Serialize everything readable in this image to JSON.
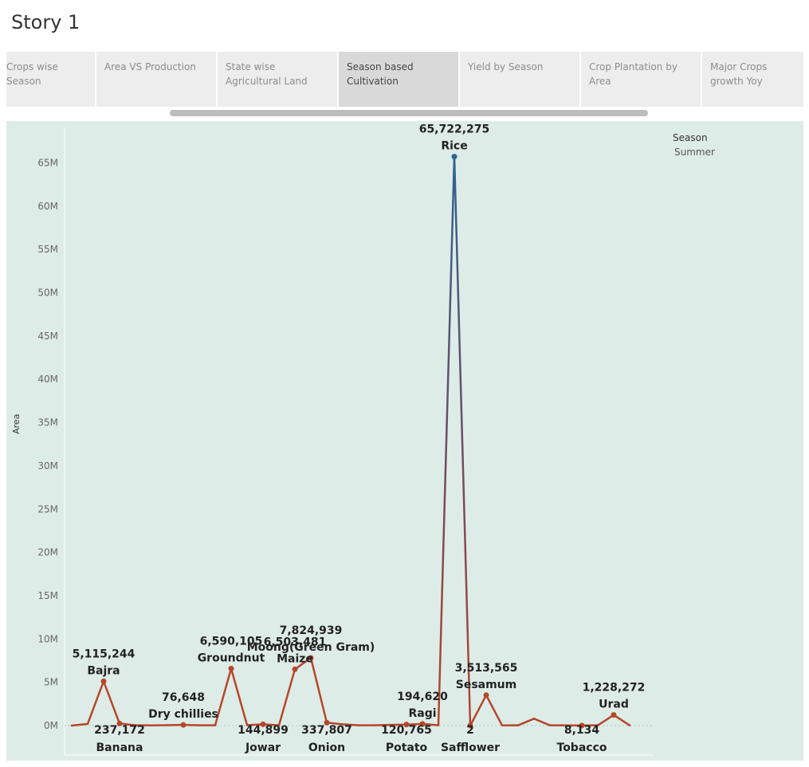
{
  "story": {
    "title": "Story 1"
  },
  "tabs": [
    {
      "label": "Crops wise Season",
      "active": false
    },
    {
      "label": "Area VS Production",
      "active": false
    },
    {
      "label": "State wise Agricultural Land",
      "active": false
    },
    {
      "label": "Season based Cultivation",
      "active": true
    },
    {
      "label": "Yield by Season",
      "active": false
    },
    {
      "label": "Crop Plantation by Area",
      "active": false
    },
    {
      "label": "Major Crops growth Yoy",
      "active": false
    }
  ],
  "legend": {
    "title": "Season",
    "item": "Summer"
  },
  "colors": {
    "line_low": "#b5472a",
    "line_high": "#2e6391",
    "plot_bg": "#deece8"
  },
  "chart_data": {
    "type": "line",
    "ylabel": "Area",
    "ylim": [
      0,
      70000000
    ],
    "y_ticks": [
      "0M",
      "5M",
      "10M",
      "15M",
      "20M",
      "25M",
      "30M",
      "35M",
      "40M",
      "45M",
      "50M",
      "55M",
      "60M",
      "65M"
    ],
    "values": [
      0,
      200000,
      5115244,
      237172,
      30000,
      20000,
      50000,
      76648,
      30000,
      40000,
      6590105,
      50000,
      144899,
      30000,
      6503481,
      7824939,
      337807,
      150000,
      30000,
      30000,
      80000,
      120765,
      194620,
      30000,
      65722275,
      2,
      3513565,
      20000,
      30000,
      800000,
      30000,
      20000,
      8134,
      30000,
      1228272,
      30000
    ],
    "annotations": [
      {
        "index": 2,
        "value": "5,115,244",
        "label": "Bajra",
        "pos": "above"
      },
      {
        "index": 3,
        "value": "237,172",
        "label": "Banana",
        "pos": "below"
      },
      {
        "index": 7,
        "value": "76,648",
        "label": "Dry chillies",
        "pos": "above"
      },
      {
        "index": 10,
        "value": "6,590,105",
        "label": "Groundnut",
        "pos": "above"
      },
      {
        "index": 12,
        "value": "144,899",
        "label": "Jowar",
        "pos": "below"
      },
      {
        "index": 14,
        "value": "6,503,481",
        "label": "Maize",
        "pos": "above"
      },
      {
        "index": 15,
        "value": "7,824,939",
        "label": "Moong(Green Gram)",
        "pos": "above"
      },
      {
        "index": 16,
        "value": "337,807",
        "label": "Onion",
        "pos": "below"
      },
      {
        "index": 21,
        "value": "120,765",
        "label": "Potato",
        "pos": "below"
      },
      {
        "index": 22,
        "value": "194,620",
        "label": "Ragi",
        "pos": "above"
      },
      {
        "index": 24,
        "value": "65,722,275",
        "label": "Rice",
        "pos": "above"
      },
      {
        "index": 25,
        "value": "2",
        "label": "Safflower",
        "pos": "below"
      },
      {
        "index": 26,
        "value": "3,513,565",
        "label": "Sesamum",
        "pos": "above"
      },
      {
        "index": 32,
        "value": "8,134",
        "label": "Tobacco",
        "pos": "below"
      },
      {
        "index": 34,
        "value": "1,228,272",
        "label": "Urad",
        "pos": "above"
      }
    ]
  }
}
